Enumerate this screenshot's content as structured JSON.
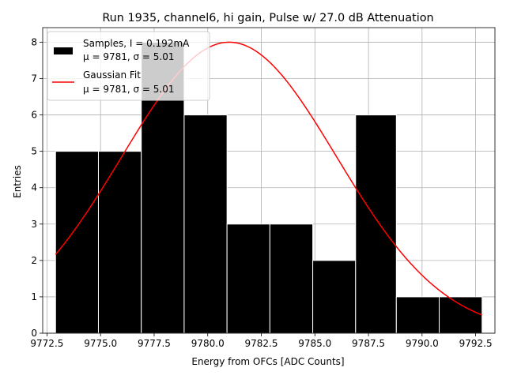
{
  "chart_data": {
    "type": "bar",
    "title": "Run 1935, channel6, hi gain, Pulse w/ 27.0 dB Attenuation",
    "xlabel": "Energy from OFCs [ADC Counts]",
    "ylabel": "Entries",
    "xlim": [
      9772.3,
      9793.4
    ],
    "ylim": [
      0,
      8.4
    ],
    "xticks": [
      "9772.5",
      "9775.0",
      "9777.5",
      "9780.0",
      "9782.5",
      "9785.0",
      "9787.5",
      "9790.0",
      "9792.5"
    ],
    "xtick_values": [
      9772.5,
      9775.0,
      9777.5,
      9780.0,
      9782.5,
      9785.0,
      9787.5,
      9790.0,
      9792.5
    ],
    "yticks": [
      "0",
      "1",
      "2",
      "3",
      "4",
      "5",
      "6",
      "7",
      "8"
    ],
    "ytick_values": [
      0,
      1,
      2,
      3,
      4,
      5,
      6,
      7,
      8
    ],
    "grid": true,
    "bins": [
      {
        "x0": 9772.9,
        "x1": 9774.9,
        "count": 5
      },
      {
        "x0": 9774.9,
        "x1": 9776.9,
        "count": 5
      },
      {
        "x0": 9776.9,
        "x1": 9778.9,
        "count": 8
      },
      {
        "x0": 9778.9,
        "x1": 9780.9,
        "count": 6
      },
      {
        "x0": 9780.9,
        "x1": 9782.9,
        "count": 3
      },
      {
        "x0": 9782.9,
        "x1": 9784.9,
        "count": 3
      },
      {
        "x0": 9784.9,
        "x1": 9786.9,
        "count": 2
      },
      {
        "x0": 9786.9,
        "x1": 9788.8,
        "count": 6
      },
      {
        "x0": 9788.8,
        "x1": 9790.8,
        "count": 1
      },
      {
        "x0": 9790.8,
        "x1": 9792.8,
        "count": 1
      }
    ],
    "series": [
      {
        "name": "Samples, I = 0.192mA",
        "stats": "μ = 9781, σ = 5.01",
        "kind": "histogram",
        "color": "#000000"
      },
      {
        "name": "Gaussian Fit",
        "stats": "μ = 9781, σ = 5.01",
        "kind": "line",
        "color": "#ff0000",
        "fit": {
          "mu": 9781.0,
          "sigma": 5.01,
          "amplitude": 8.0,
          "x_range": [
            9772.9,
            9792.8
          ]
        }
      }
    ],
    "legend_position": "top-left"
  }
}
